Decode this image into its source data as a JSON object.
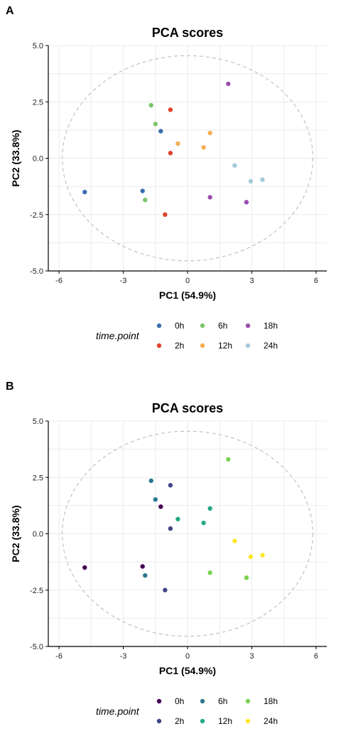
{
  "figure": {
    "panels": [
      "A",
      "B"
    ]
  },
  "legend": {
    "title": "time.point",
    "labels": [
      "0h",
      "2h",
      "6h",
      "12h",
      "18h",
      "24h"
    ]
  },
  "palettes": {
    "A": {
      "0h": "#3a6fae",
      "2h": "#e0432b",
      "6h": "#7cc46a",
      "12h": "#f5ad52",
      "18h": "#9b4fae",
      "24h": "#a3c9dc"
    },
    "B": {
      "0h": "#440154",
      "2h": "#414487",
      "6h": "#2a788e",
      "12h": "#22a884",
      "18h": "#7ad151",
      "24h": "#fde725"
    }
  },
  "chart_data": [
    {
      "type": "scatter",
      "panel": "A",
      "title": "PCA scores",
      "xlabel": "PC1 (54.9%)",
      "ylabel": "PC2 (33.8%)",
      "xlim": [
        -6.5,
        6.5
      ],
      "ylim": [
        -5.0,
        5.0
      ],
      "xticks": [
        -6,
        -3,
        0,
        3,
        6
      ],
      "xtick_labels": [
        "-6",
        "-3",
        "0",
        "3",
        "6"
      ],
      "yticks": [
        -5.0,
        -2.5,
        0.0,
        2.5,
        5.0
      ],
      "ytick_labels": [
        "-5.0",
        "-2.5",
        "0.0",
        "2.5",
        "5.0"
      ],
      "grid": true,
      "legend_position": "bottom",
      "confidence_ellipse": {
        "cx": 0.0,
        "cy": 0.0,
        "rx": 5.85,
        "ry": 4.55
      },
      "series": [
        {
          "name": "0h",
          "points": [
            [
              -4.8,
              -1.5
            ],
            [
              -2.1,
              -1.45
            ],
            [
              -1.25,
              1.2
            ]
          ]
        },
        {
          "name": "2h",
          "points": [
            [
              -0.8,
              2.15
            ],
            [
              -0.8,
              0.23
            ],
            [
              -1.05,
              -2.5
            ]
          ]
        },
        {
          "name": "6h",
          "points": [
            [
              -1.7,
              2.35
            ],
            [
              -1.5,
              1.52
            ],
            [
              -1.98,
              -1.85
            ]
          ]
        },
        {
          "name": "12h",
          "points": [
            [
              -0.45,
              0.65
            ],
            [
              1.05,
              1.12
            ],
            [
              0.75,
              0.48
            ]
          ]
        },
        {
          "name": "18h",
          "points": [
            [
              1.9,
              3.3
            ],
            [
              1.05,
              -1.73
            ],
            [
              2.75,
              -1.95
            ]
          ]
        },
        {
          "name": "24h",
          "points": [
            [
              2.2,
              -0.32
            ],
            [
              2.95,
              -1.02
            ],
            [
              3.5,
              -0.95
            ]
          ]
        }
      ]
    },
    {
      "type": "scatter",
      "panel": "B",
      "title": "PCA scores",
      "xlabel": "PC1 (54.9%)",
      "ylabel": "PC2 (33.8%)",
      "xlim": [
        -6.5,
        6.5
      ],
      "ylim": [
        -5.0,
        5.0
      ],
      "xticks": [
        -6,
        -3,
        0,
        3,
        6
      ],
      "xtick_labels": [
        "-6",
        "-3",
        "0",
        "3",
        "6"
      ],
      "yticks": [
        -5.0,
        -2.5,
        0.0,
        2.5,
        5.0
      ],
      "ytick_labels": [
        "-5.0",
        "-2.5",
        "0.0",
        "2.5",
        "5.0"
      ],
      "grid": true,
      "legend_position": "bottom",
      "confidence_ellipse": {
        "cx": 0.0,
        "cy": 0.0,
        "rx": 5.85,
        "ry": 4.55
      },
      "series": [
        {
          "name": "0h",
          "points": [
            [
              -4.8,
              -1.5
            ],
            [
              -2.1,
              -1.45
            ],
            [
              -1.25,
              1.2
            ]
          ]
        },
        {
          "name": "2h",
          "points": [
            [
              -0.8,
              2.15
            ],
            [
              -0.8,
              0.23
            ],
            [
              -1.05,
              -2.5
            ]
          ]
        },
        {
          "name": "6h",
          "points": [
            [
              -1.7,
              2.35
            ],
            [
              -1.5,
              1.52
            ],
            [
              -1.98,
              -1.85
            ]
          ]
        },
        {
          "name": "12h",
          "points": [
            [
              -0.45,
              0.65
            ],
            [
              1.05,
              1.12
            ],
            [
              0.75,
              0.48
            ]
          ]
        },
        {
          "name": "18h",
          "points": [
            [
              1.9,
              3.3
            ],
            [
              1.05,
              -1.73
            ],
            [
              2.75,
              -1.95
            ]
          ]
        },
        {
          "name": "24h",
          "points": [
            [
              2.2,
              -0.32
            ],
            [
              2.95,
              -1.02
            ],
            [
              3.5,
              -0.95
            ]
          ]
        }
      ]
    }
  ]
}
